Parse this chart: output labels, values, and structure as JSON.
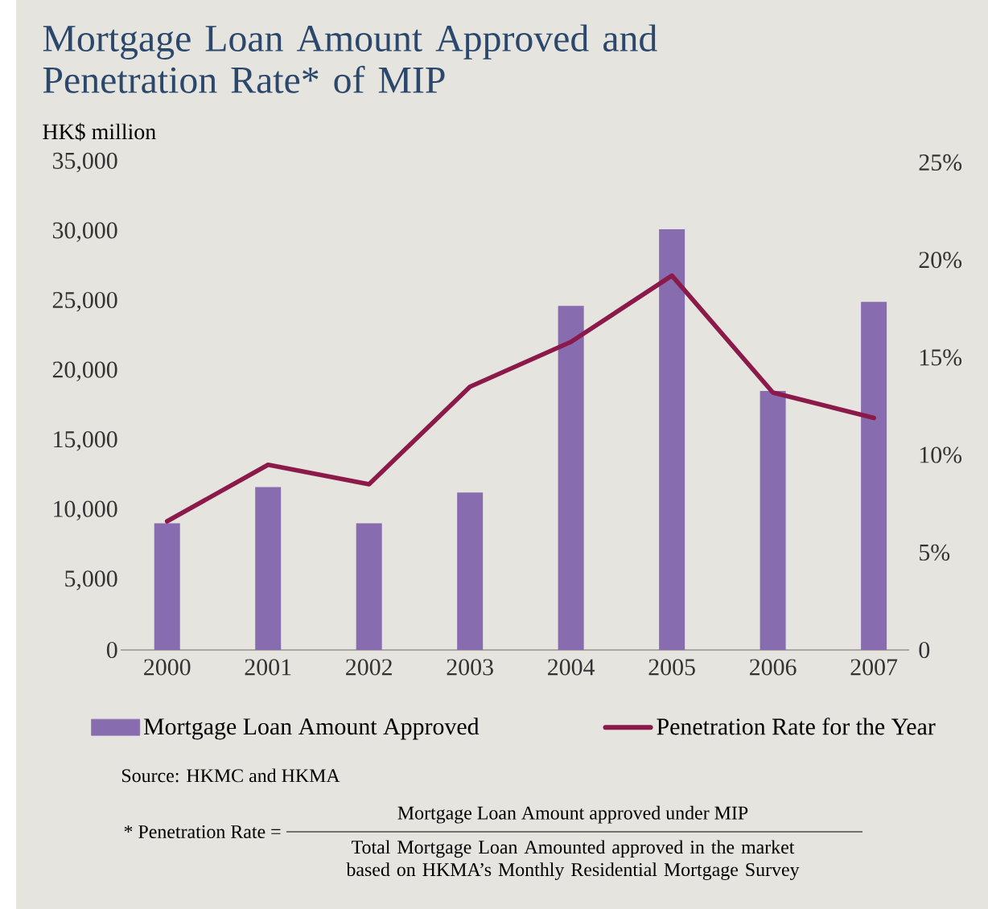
{
  "chart_data": {
    "type": "bar",
    "title": "Mortgage Loan Amount Approved and Penetration Rate* of MIP",
    "ylabel": "HK$ million",
    "categories": [
      "2000",
      "2001",
      "2002",
      "2003",
      "2004",
      "2005",
      "2006",
      "2007"
    ],
    "series": [
      {
        "name": "Mortgage Loan Amount Approved",
        "color": "#876cb0",
        "values": [
          9100,
          11700,
          9100,
          11300,
          24700,
          30200,
          18600,
          25000
        ]
      },
      {
        "name": "Penetration Rate for the Year",
        "type": "line",
        "axis": "y2",
        "color": "#8b1a4a",
        "values": [
          6.6,
          9.5,
          8.5,
          13.5,
          15.8,
          19.2,
          13.2,
          11.9
        ]
      }
    ],
    "ylim": [
      0,
      35000
    ],
    "yticks": [
      {
        "value": 0,
        "label": "0"
      },
      {
        "value": 5000,
        "label": "5,000"
      },
      {
        "value": 10000,
        "label": "10,000"
      },
      {
        "value": 15000,
        "label": "15,000"
      },
      {
        "value": 20000,
        "label": "20,000"
      },
      {
        "value": 25000,
        "label": "25,000"
      },
      {
        "value": 30000,
        "label": "30,000"
      },
      {
        "value": 35000,
        "label": "35,000"
      }
    ],
    "y2lim": [
      0,
      25
    ],
    "y2ticks": [
      {
        "value": 0,
        "label": "0"
      },
      {
        "value": 5,
        "label": "5%"
      },
      {
        "value": 10,
        "label": "10%"
      },
      {
        "value": 15,
        "label": "15%"
      },
      {
        "value": 20,
        "label": "20%"
      },
      {
        "value": 25,
        "label": "25%"
      }
    ],
    "grid": false,
    "legend": "bottom",
    "annotations": [
      "Source: HKMC and HKMA",
      "* Penetration Rate =",
      "Mortgage Loan Amount approved under MIP",
      "Total Mortgage Loan Amounted approved in the market based on HKMA’s Monthly Residential Mortgage Survey"
    ]
  }
}
